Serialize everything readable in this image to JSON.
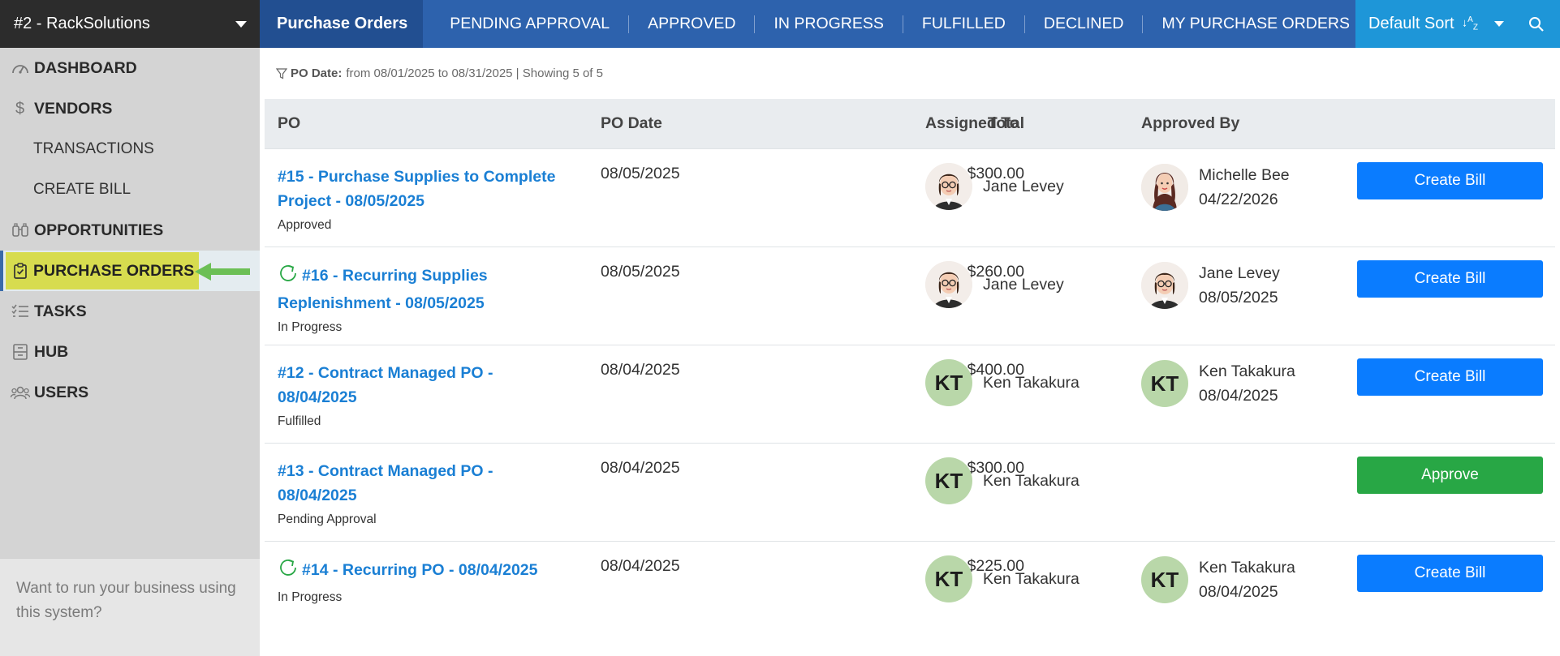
{
  "sidebar": {
    "org": "#2 - RackSolutions",
    "items": [
      {
        "label": "DASHBOARD",
        "icon": "dashboard-icon"
      },
      {
        "label": "VENDORS",
        "icon": "dollar-icon"
      },
      {
        "label": "TRANSACTIONS",
        "icon": ""
      },
      {
        "label": "CREATE BILL",
        "icon": ""
      },
      {
        "label": "OPPORTUNITIES",
        "icon": "binoculars-icon"
      },
      {
        "label": "PURCHASE ORDERS",
        "icon": "clipboard-check-icon"
      },
      {
        "label": "TASKS",
        "icon": "tasks-icon"
      },
      {
        "label": "HUB",
        "icon": "cabinet-icon"
      },
      {
        "label": "USERS",
        "icon": "users-icon"
      }
    ],
    "footer": "Want to run your business using this system?"
  },
  "topbar": {
    "main_tab": "Purchase Orders",
    "tabs": [
      "PENDING APPROVAL",
      "APPROVED",
      "IN PROGRESS",
      "FULFILLED",
      "DECLINED",
      "MY PURCHASE ORDERS"
    ],
    "sort_label": "Default Sort"
  },
  "filter": {
    "label": "PO Date:",
    "text": "from 08/01/2025 to 08/31/2025 | Showing 5 of 5"
  },
  "table": {
    "headers": {
      "po": "PO",
      "date": "PO Date",
      "total": "Total",
      "assigned": "Assigned To",
      "approved": "Approved By"
    },
    "rows": [
      {
        "recurring": false,
        "title_line1": "#15 - Purchase Supplies to Complete",
        "title_line2": "Project - 08/05/2025",
        "status": "Approved",
        "date": "08/05/2025",
        "total": "$300.00",
        "assigned": {
          "name": "Jane Levey",
          "avatar": "jane"
        },
        "approved": {
          "name": "Michelle Bee",
          "date": "04/22/2026",
          "avatar": "michelle"
        },
        "action": "Create Bill",
        "action_color": "blue"
      },
      {
        "recurring": true,
        "title_line1": "#16 - Recurring Supplies",
        "title_line2": "Replenishment - 08/05/2025",
        "status": "In Progress",
        "date": "08/05/2025",
        "total": "$260.00",
        "assigned": {
          "name": "Jane Levey",
          "avatar": "jane"
        },
        "approved": {
          "name": "Jane Levey",
          "date": "08/05/2025",
          "avatar": "jane"
        },
        "action": "Create Bill",
        "action_color": "blue"
      },
      {
        "recurring": false,
        "title_line1": "#12 - Contract Managed PO -",
        "title_line2": "08/04/2025",
        "status": "Fulfilled",
        "date": "08/04/2025",
        "total": "$400.00",
        "assigned": {
          "name": "Ken Takakura",
          "initials": "KT"
        },
        "approved": {
          "name": "Ken Takakura",
          "date": "08/04/2025",
          "initials": "KT"
        },
        "action": "Create Bill",
        "action_color": "blue"
      },
      {
        "recurring": false,
        "title_line1": "#13 - Contract Managed PO -",
        "title_line2": "08/04/2025",
        "status": "Pending Approval",
        "date": "08/04/2025",
        "total": "$300.00",
        "assigned": {
          "name": "Ken Takakura",
          "initials": "KT"
        },
        "approved": null,
        "action": "Approve",
        "action_color": "green"
      },
      {
        "recurring": true,
        "title_line1": "#14 - Recurring PO - 08/04/2025",
        "title_line2": "",
        "status": "In Progress",
        "date": "08/04/2025",
        "total": "$225.00",
        "assigned": {
          "name": "Ken Takakura",
          "initials": "KT"
        },
        "approved": {
          "name": "Ken Takakura",
          "date": "08/04/2025",
          "initials": "KT"
        },
        "action": "Create Bill",
        "action_color": "blue"
      }
    ]
  },
  "colors": {
    "accent_blue": "#0a7cff",
    "approve_green": "#28a745",
    "topbar": "#224f91",
    "link": "#1a7fd4",
    "highlight": "#d7dc4f",
    "arrow": "#6cbf55"
  }
}
